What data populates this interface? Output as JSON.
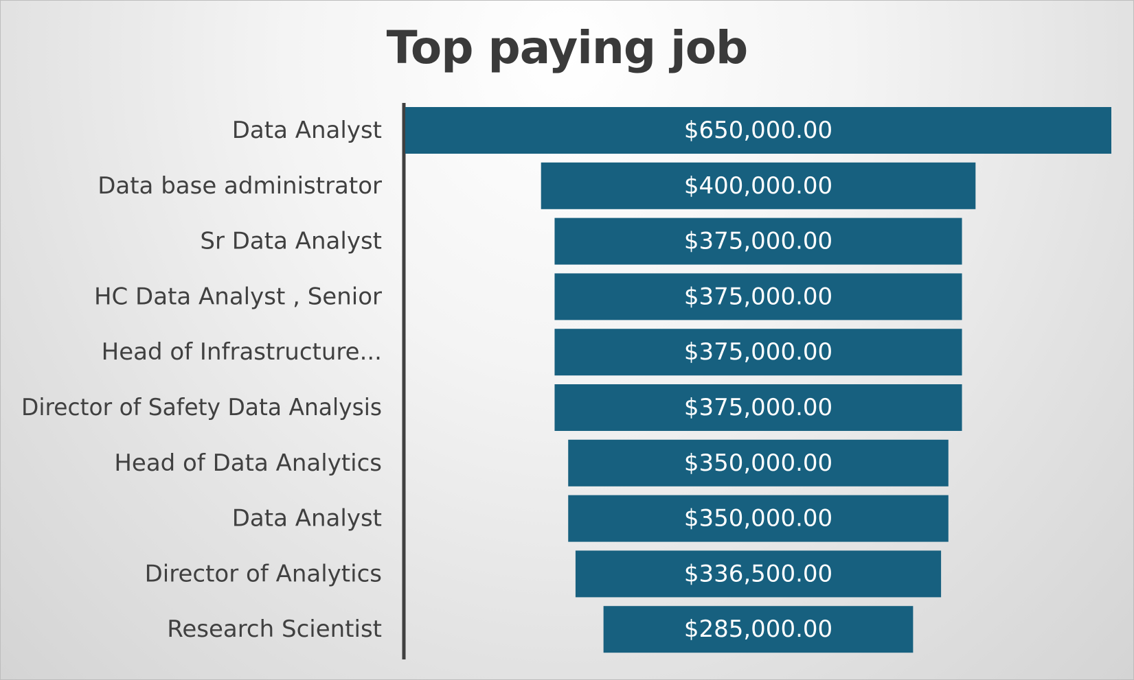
{
  "chart_data": {
    "type": "bar",
    "subtype": "funnel",
    "title": "Top paying job",
    "categories": [
      "Data Analyst",
      "Data base administrator",
      "Sr Data Analyst",
      "HC Data Analyst , Senior",
      "Head of Infrastructure...",
      "Director of Safety Data Analysis",
      "Head of Data Analytics",
      "Data Analyst",
      "Director of Analytics",
      "Research Scientist"
    ],
    "values": [
      650000,
      400000,
      375000,
      375000,
      375000,
      375000,
      350000,
      350000,
      336500,
      285000
    ],
    "data_labels": [
      "$650,000.00",
      "$400,000.00",
      "$375,000.00",
      "$375,000.00",
      "$375,000.00",
      "$375,000.00",
      "$350,000.00",
      "$350,000.00",
      "$336,500.00",
      "$285,000.00"
    ],
    "bar_color": "#17607f",
    "axis_color": "#404040",
    "grid": false,
    "legend": "none"
  }
}
